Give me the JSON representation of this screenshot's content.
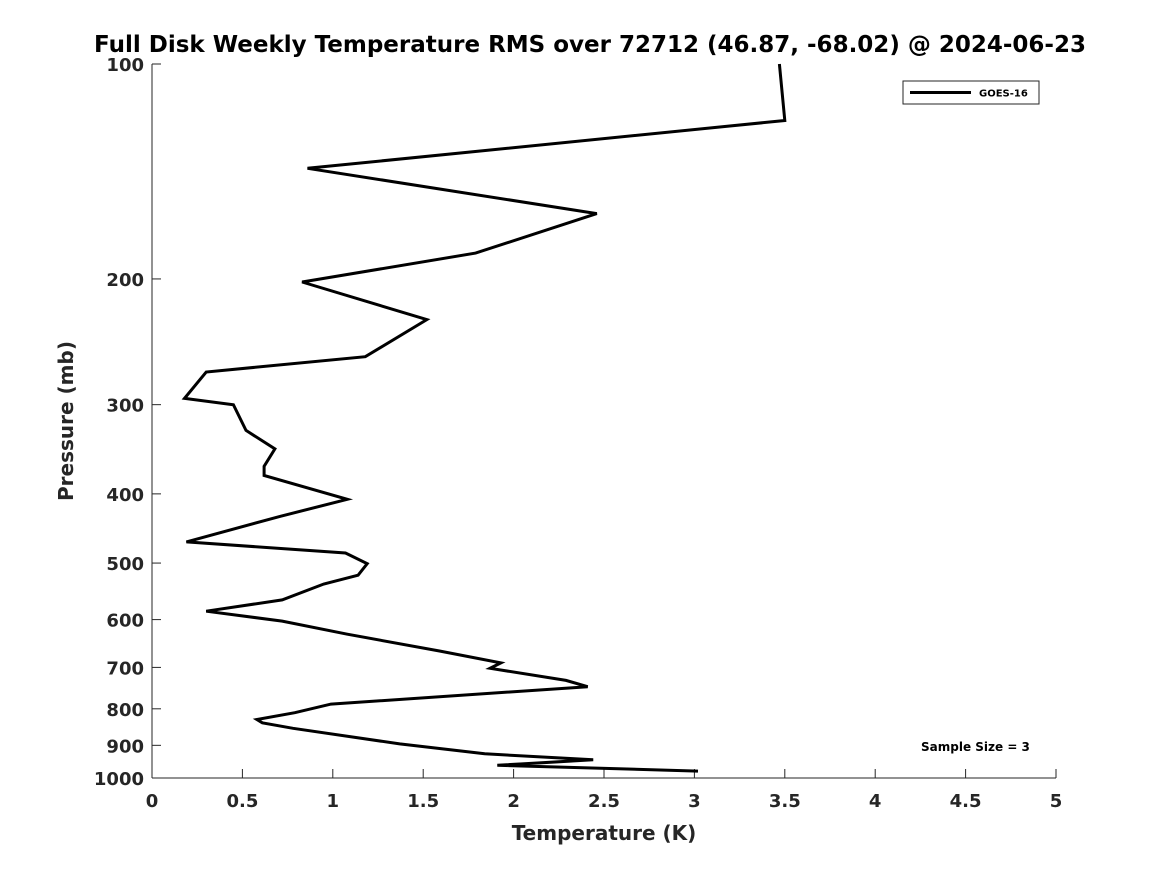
{
  "chart_data": {
    "type": "line",
    "title": "Full Disk Weekly Temperature RMS over 72712 (46.87, -68.02) @ 2024-06-23",
    "xlabel": "Temperature (K)",
    "ylabel": "Pressure (mb)",
    "xlim": [
      0,
      5
    ],
    "ylim": [
      100,
      1000
    ],
    "y_scale": "log",
    "y_reversed": true,
    "x_ticks": [
      0,
      0.5,
      1,
      1.5,
      2,
      2.5,
      3,
      3.5,
      4,
      4.5,
      5
    ],
    "x_tick_labels": [
      "0",
      "0.5",
      "1",
      "1.5",
      "2",
      "2.5",
      "3",
      "3.5",
      "4",
      "4.5",
      "5"
    ],
    "y_ticks": [
      100,
      200,
      300,
      400,
      500,
      600,
      700,
      800,
      900,
      1000
    ],
    "y_tick_labels": [
      "100",
      "200",
      "300",
      "400",
      "500",
      "600",
      "700",
      "800",
      "900",
      "1000"
    ],
    "grid": false,
    "legend_position": "top-right",
    "series": [
      {
        "name": "GOES-16",
        "color": "#000000",
        "x": [
          3.47,
          3.5,
          0.86,
          2.46,
          1.79,
          0.83,
          1.52,
          1.18,
          0.3,
          0.18,
          0.45,
          0.52,
          0.68,
          0.62,
          0.62,
          1.08,
          0.71,
          0.19,
          1.07,
          1.19,
          1.14,
          0.95,
          0.72,
          0.3,
          0.72,
          1.08,
          1.59,
          1.93,
          1.87,
          2.29,
          2.41,
          0.99,
          0.79,
          0.58,
          0.61,
          0.78,
          1.37,
          1.84,
          2.44,
          1.91,
          3.02
        ],
        "y": [
          100,
          120,
          140,
          162,
          184,
          202,
          228,
          257,
          270,
          294,
          300,
          326,
          346,
          366,
          377,
          407,
          430,
          467,
          484,
          501,
          520,
          535,
          563,
          584,
          603,
          629,
          664,
          690,
          702,
          730,
          745,
          788,
          810,
          828,
          837,
          852,
          896,
          925,
          943,
          960,
          978
        ]
      }
    ],
    "annotations": [
      {
        "text": "Sample Size = 3"
      }
    ]
  }
}
